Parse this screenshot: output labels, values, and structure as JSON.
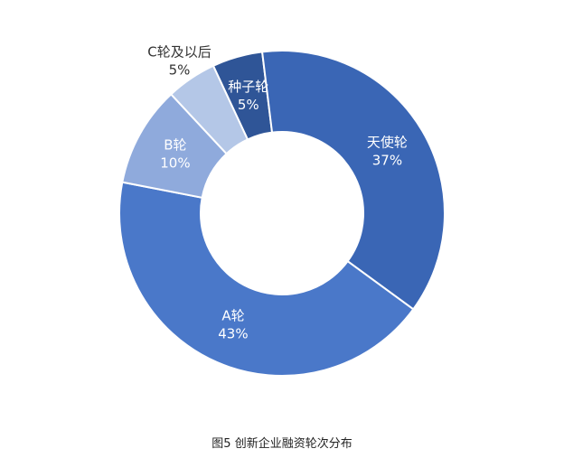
{
  "chart_data": {
    "type": "pie",
    "style": "donut",
    "title": "图5 创新企业融资轮次分布",
    "slices": [
      {
        "label": "种子轮",
        "value": 5,
        "value_label": "5%",
        "color": "#2F5597",
        "label_color": "#ffffff"
      },
      {
        "label": "天使轮",
        "value": 37,
        "value_label": "37%",
        "color": "#3A66B5",
        "label_color": "#ffffff"
      },
      {
        "label": "A轮",
        "value": 43,
        "value_label": "43%",
        "color": "#4A78C9",
        "label_color": "#ffffff"
      },
      {
        "label": "B轮",
        "value": 10,
        "value_label": "10%",
        "color": "#8FAADC",
        "label_color": "#ffffff"
      },
      {
        "label": "C轮及以后",
        "value": 5,
        "value_label": "5%",
        "color": "#B4C7E7",
        "label_color": "#333333"
      }
    ],
    "legend": "none",
    "grid": false
  }
}
